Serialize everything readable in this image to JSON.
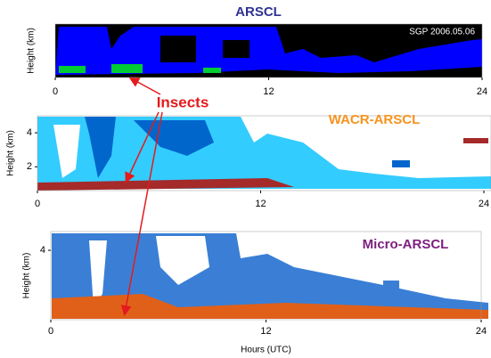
{
  "chart_data": [
    {
      "type": "image",
      "title": "ARSCL",
      "annotations": [
        "SGP 2006.05.06",
        "Insects"
      ],
      "ylabel": "Height (km)",
      "xlim": [
        0,
        24
      ],
      "xticks": [
        0,
        12,
        24
      ]
    },
    {
      "type": "image",
      "title": "WACR-ARSCL",
      "ylabel": "Height (km)",
      "xlim": [
        0,
        24
      ],
      "xticks": [
        0,
        12,
        24
      ],
      "ylim": [
        0.6,
        5.0
      ],
      "yticks": [
        2,
        4
      ]
    },
    {
      "type": "image",
      "title": "Micro-ARSCL",
      "ylabel": "Height (km)",
      "xlabel": "Hours (UTC)",
      "xlim": [
        0,
        24
      ],
      "xticks": [
        0,
        12,
        24
      ],
      "ylim": [
        0.3,
        5.0
      ],
      "yticks": [
        4
      ]
    }
  ]
}
